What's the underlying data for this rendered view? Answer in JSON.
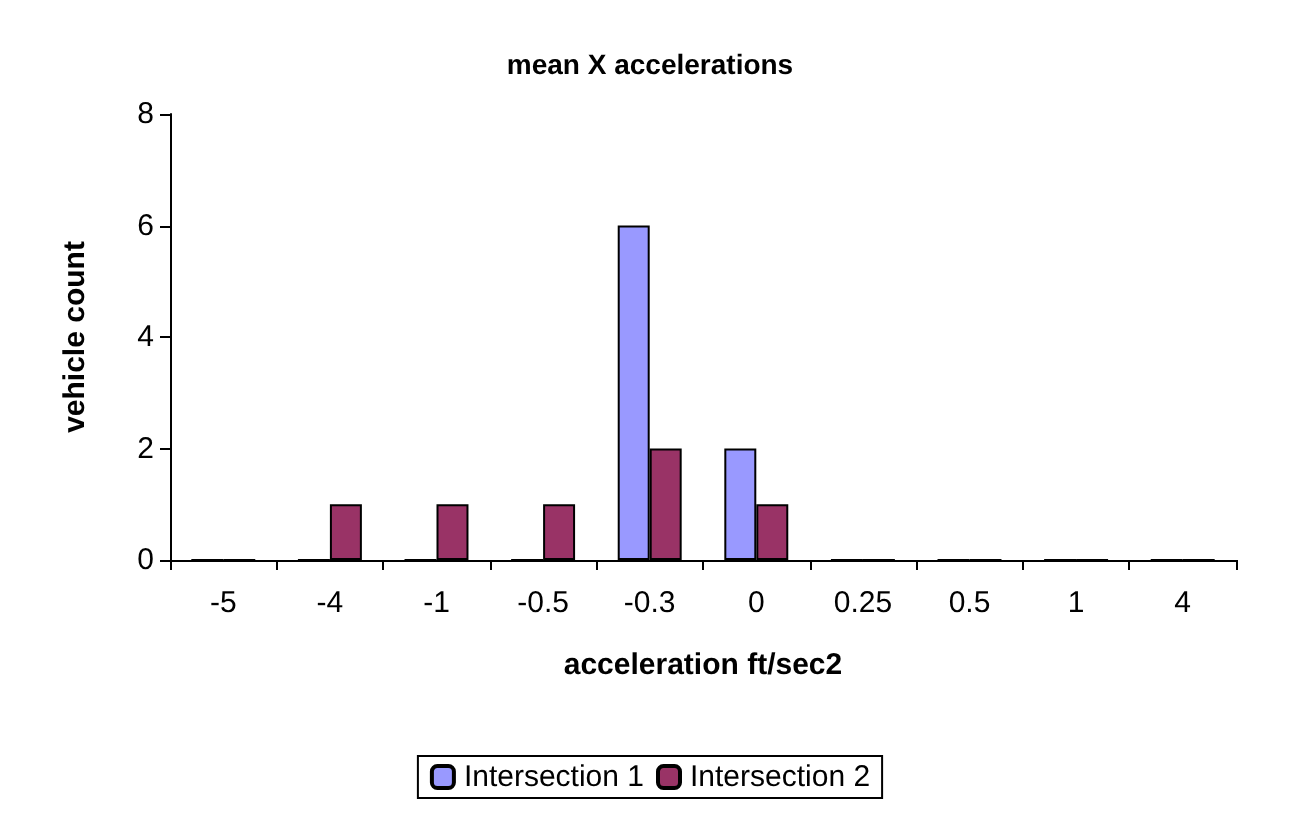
{
  "chart_data": {
    "type": "bar",
    "title": "mean X accelerations",
    "xlabel": "acceleration ft/sec2",
    "ylabel": "vehicle count",
    "categories": [
      "-5",
      "-4",
      "-1",
      "-0.5",
      "-0.3",
      "0",
      "0.25",
      "0.5",
      "1",
      "4"
    ],
    "series": [
      {
        "name": "Intersection 1",
        "color": "#9999ff",
        "values": [
          0,
          0,
          0,
          0,
          6,
          2,
          0,
          0,
          0,
          0
        ]
      },
      {
        "name": "Intersection 2",
        "color": "#993366",
        "values": [
          0,
          1,
          1,
          1,
          2,
          1,
          0,
          0,
          0,
          0
        ]
      }
    ],
    "ylim": [
      0,
      8
    ],
    "yticks": [
      0,
      2,
      4,
      6,
      8
    ],
    "grid": false,
    "legend": "bottom"
  }
}
